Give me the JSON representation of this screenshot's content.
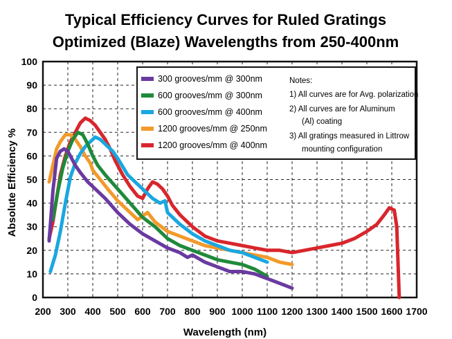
{
  "chart_data": {
    "type": "line",
    "title_lines": [
      "Typical Efficiency Curves  for Ruled Gratings",
      "Optimized (Blaze) Wavelengths from 250-400nm"
    ],
    "xlabel": "Wavelength (nm)",
    "ylabel": "Absolute Efficiency %",
    "xlim": [
      200,
      1700
    ],
    "ylim": [
      0,
      100
    ],
    "xticks": [
      200,
      300,
      400,
      500,
      600,
      700,
      800,
      900,
      1000,
      1100,
      1200,
      1300,
      1400,
      1500,
      1600,
      1700
    ],
    "yticks": [
      0,
      10,
      20,
      30,
      40,
      50,
      60,
      70,
      80,
      90,
      100
    ],
    "grid": "dashed",
    "legend_position": "top-right",
    "series": [
      {
        "name": "300 grooves/mm  @ 300nm",
        "color": "#6a3aa0",
        "points": [
          [
            225,
            24
          ],
          [
            240,
            45
          ],
          [
            255,
            59
          ],
          [
            270,
            62
          ],
          [
            285,
            63
          ],
          [
            300,
            62
          ],
          [
            315,
            59
          ],
          [
            330,
            56
          ],
          [
            350,
            53
          ],
          [
            380,
            49
          ],
          [
            410,
            46
          ],
          [
            450,
            42
          ],
          [
            500,
            36
          ],
          [
            550,
            31
          ],
          [
            600,
            27
          ],
          [
            650,
            24
          ],
          [
            700,
            21
          ],
          [
            750,
            19
          ],
          [
            780,
            17
          ],
          [
            800,
            18
          ],
          [
            850,
            15
          ],
          [
            900,
            13
          ],
          [
            950,
            11
          ],
          [
            1000,
            11
          ],
          [
            1050,
            10
          ],
          [
            1100,
            8
          ],
          [
            1150,
            6
          ],
          [
            1200,
            4
          ]
        ]
      },
      {
        "name": "600 grooves/mm  @ 300nm",
        "color": "#1f8a3a",
        "points": [
          [
            240,
            33
          ],
          [
            260,
            45
          ],
          [
            280,
            55
          ],
          [
            300,
            62
          ],
          [
            320,
            67
          ],
          [
            340,
            70
          ],
          [
            360,
            69
          ],
          [
            380,
            65
          ],
          [
            400,
            60
          ],
          [
            420,
            56
          ],
          [
            450,
            52
          ],
          [
            500,
            46
          ],
          [
            550,
            40
          ],
          [
            600,
            34
          ],
          [
            650,
            30
          ],
          [
            700,
            25
          ],
          [
            750,
            22
          ],
          [
            800,
            20
          ],
          [
            850,
            18
          ],
          [
            900,
            16
          ],
          [
            950,
            15
          ],
          [
            1000,
            14
          ],
          [
            1050,
            12
          ],
          [
            1100,
            9
          ]
        ]
      },
      {
        "name": "600 grooves/mm  @ 400nm",
        "color": "#1aa7e0",
        "points": [
          [
            230,
            11
          ],
          [
            250,
            18
          ],
          [
            270,
            28
          ],
          [
            290,
            40
          ],
          [
            310,
            51
          ],
          [
            330,
            57
          ],
          [
            350,
            61
          ],
          [
            370,
            64
          ],
          [
            390,
            66
          ],
          [
            410,
            68
          ],
          [
            430,
            67
          ],
          [
            450,
            65
          ],
          [
            480,
            62
          ],
          [
            500,
            59
          ],
          [
            540,
            52
          ],
          [
            570,
            49
          ],
          [
            600,
            46
          ],
          [
            640,
            42
          ],
          [
            670,
            40
          ],
          [
            690,
            41
          ],
          [
            700,
            36
          ],
          [
            750,
            31
          ],
          [
            800,
            27
          ],
          [
            850,
            24
          ],
          [
            900,
            22
          ],
          [
            950,
            20
          ],
          [
            1000,
            19
          ],
          [
            1050,
            17
          ],
          [
            1100,
            15
          ]
        ]
      },
      {
        "name": "1200 grooves/mm  @ 250nm",
        "color": "#f39a2a",
        "points": [
          [
            225,
            49
          ],
          [
            240,
            56
          ],
          [
            255,
            63
          ],
          [
            270,
            66
          ],
          [
            290,
            69
          ],
          [
            310,
            69
          ],
          [
            330,
            67
          ],
          [
            350,
            64
          ],
          [
            370,
            60
          ],
          [
            390,
            57
          ],
          [
            400,
            54
          ],
          [
            430,
            50
          ],
          [
            460,
            46
          ],
          [
            500,
            41
          ],
          [
            530,
            38
          ],
          [
            560,
            35
          ],
          [
            580,
            33
          ],
          [
            620,
            36
          ],
          [
            650,
            32
          ],
          [
            700,
            28
          ],
          [
            750,
            26
          ],
          [
            800,
            24
          ],
          [
            850,
            22
          ],
          [
            900,
            21
          ],
          [
            950,
            20
          ],
          [
            1000,
            19
          ],
          [
            1050,
            18
          ],
          [
            1100,
            17
          ],
          [
            1150,
            15
          ],
          [
            1200,
            14
          ]
        ]
      },
      {
        "name": "1200 grooves/mm  @ 400nm",
        "color": "#d8262c",
        "points": [
          [
            225,
            25
          ],
          [
            240,
            32
          ],
          [
            255,
            42
          ],
          [
            270,
            52
          ],
          [
            290,
            60
          ],
          [
            310,
            66
          ],
          [
            330,
            70
          ],
          [
            350,
            74
          ],
          [
            370,
            76
          ],
          [
            390,
            75
          ],
          [
            410,
            73
          ],
          [
            430,
            70
          ],
          [
            450,
            67
          ],
          [
            470,
            63
          ],
          [
            490,
            58
          ],
          [
            520,
            52
          ],
          [
            550,
            47
          ],
          [
            580,
            43
          ],
          [
            600,
            42
          ],
          [
            620,
            46
          ],
          [
            640,
            49
          ],
          [
            660,
            48
          ],
          [
            680,
            46
          ],
          [
            700,
            43
          ],
          [
            720,
            39
          ],
          [
            750,
            35
          ],
          [
            800,
            30
          ],
          [
            850,
            26
          ],
          [
            900,
            24
          ],
          [
            950,
            23
          ],
          [
            1000,
            22
          ],
          [
            1050,
            21
          ],
          [
            1100,
            20
          ],
          [
            1150,
            20
          ],
          [
            1200,
            19
          ],
          [
            1250,
            20
          ],
          [
            1300,
            21
          ],
          [
            1350,
            22
          ],
          [
            1400,
            23
          ],
          [
            1450,
            25
          ],
          [
            1500,
            28
          ],
          [
            1540,
            31
          ],
          [
            1570,
            35
          ],
          [
            1590,
            38
          ],
          [
            1610,
            37
          ],
          [
            1620,
            30
          ],
          [
            1625,
            15
          ],
          [
            1630,
            0
          ]
        ]
      }
    ],
    "notes": [
      "Notes:",
      "1) All curves are for Avg. polarization",
      "2) All curves are for Aluminum",
      "(Al) coating",
      "3) All gratings measured in Littrow",
      "mounting configuration"
    ]
  }
}
